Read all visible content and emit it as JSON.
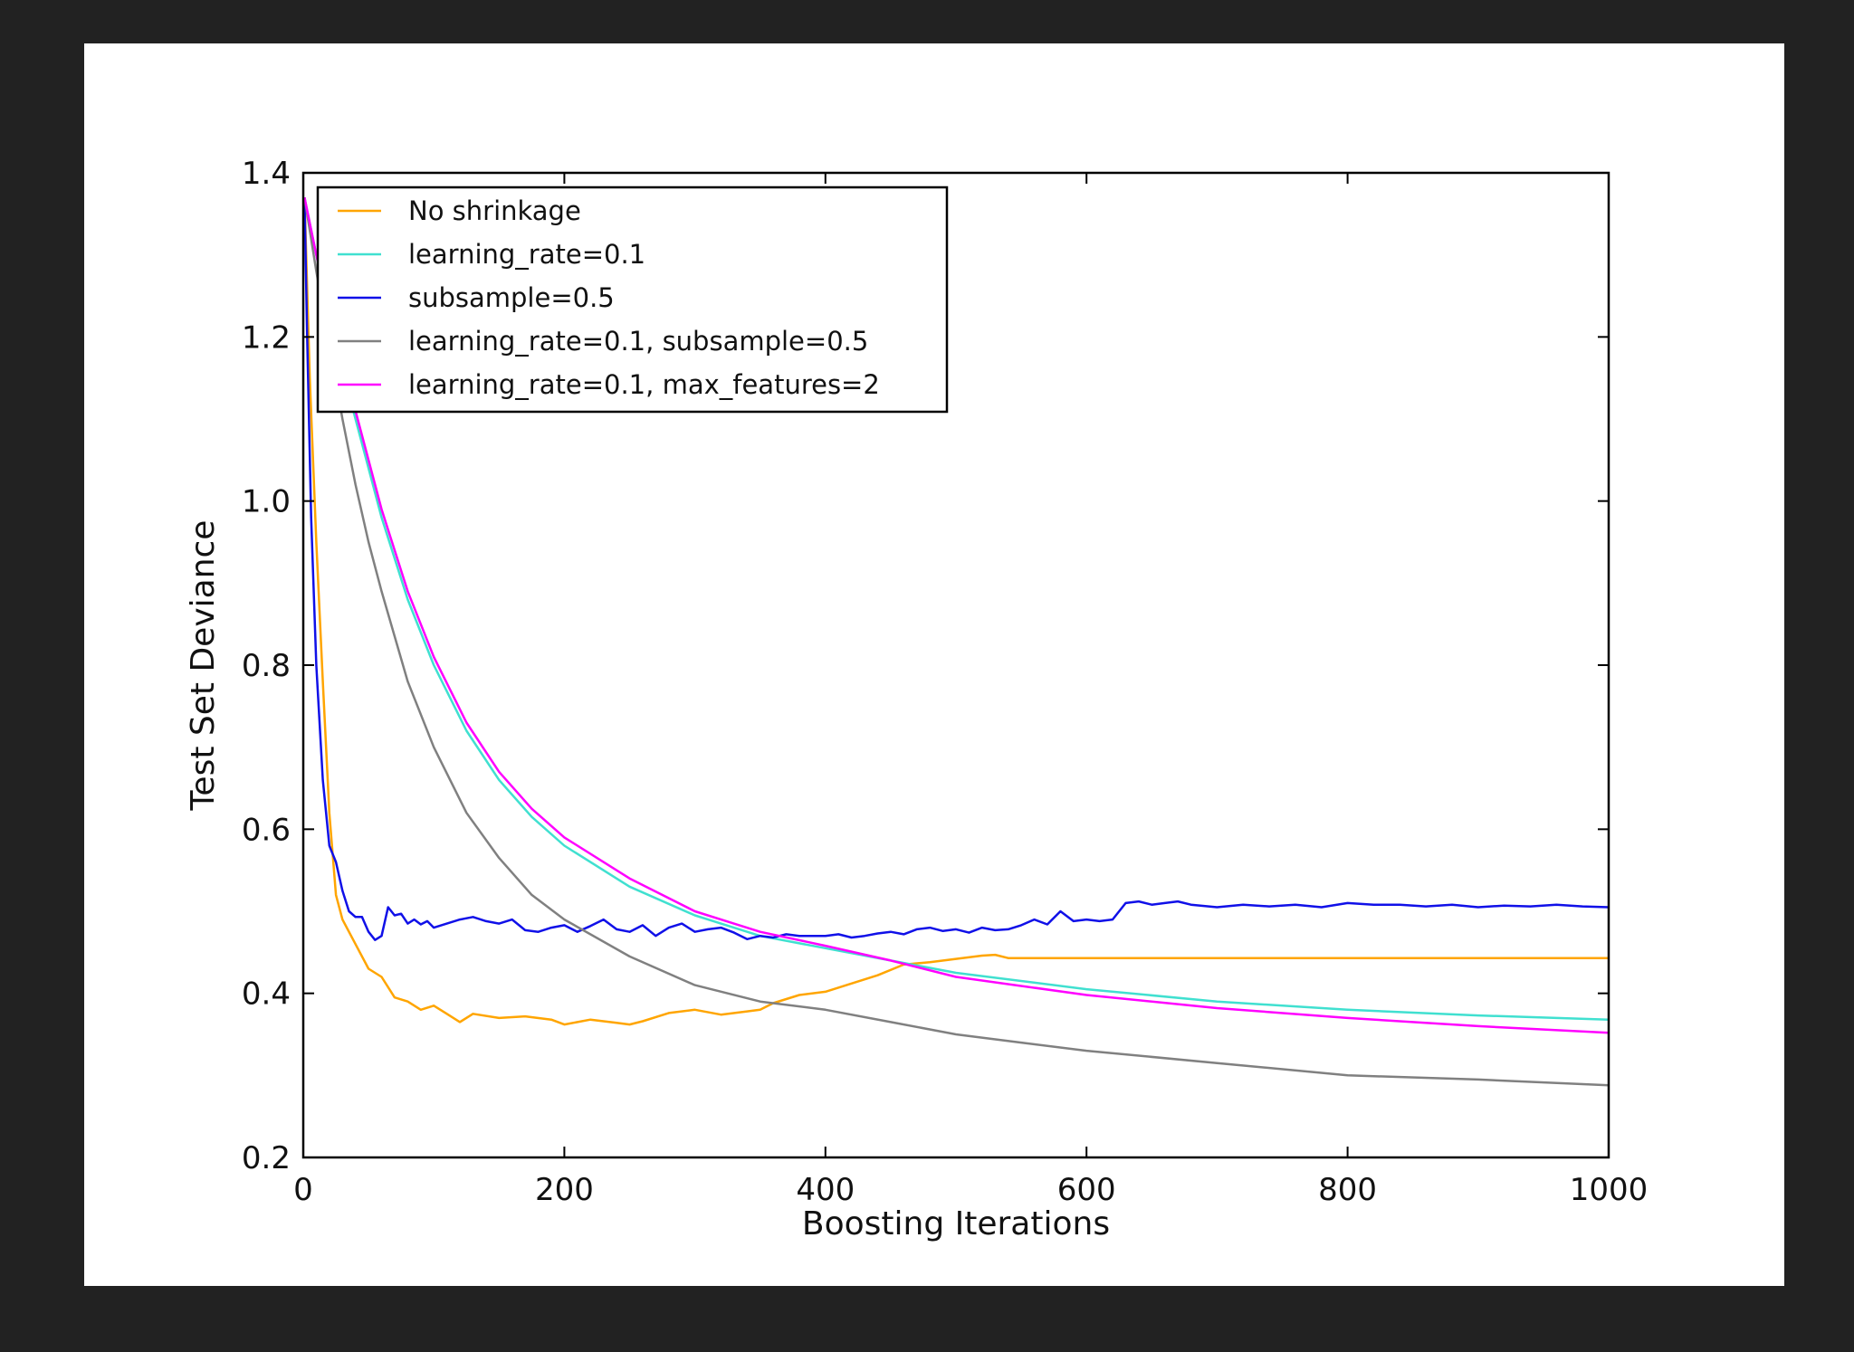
{
  "chart_data": {
    "type": "line",
    "title": "",
    "xlabel": "Boosting Iterations",
    "ylabel": "Test Set Deviance",
    "xlim": [
      0,
      1000
    ],
    "ylim": [
      0.2,
      1.4
    ],
    "xticks": [
      0,
      200,
      400,
      600,
      800,
      1000
    ],
    "xtick_labels": [
      "0",
      "200",
      "400",
      "600",
      "800",
      "1000"
    ],
    "yticks": [
      0.2,
      0.4,
      0.6,
      0.8,
      1.0,
      1.2,
      1.4
    ],
    "ytick_labels": [
      "0.2",
      "0.4",
      "0.6",
      "0.8",
      "1.0",
      "1.2",
      "1.4"
    ],
    "grid": false,
    "legend_position": "upper-left",
    "series": [
      {
        "name": "No shrinkage",
        "color": "#FFA500",
        "x": [
          1,
          5,
          10,
          15,
          20,
          25,
          30,
          40,
          50,
          60,
          70,
          80,
          90,
          100,
          110,
          120,
          130,
          150,
          170,
          190,
          200,
          220,
          240,
          250,
          260,
          280,
          300,
          320,
          340,
          350,
          360,
          380,
          400,
          420,
          440,
          460,
          480,
          500,
          520,
          530,
          540,
          560,
          600,
          700,
          800,
          900,
          1000
        ],
        "y": [
          1.37,
          1.15,
          0.95,
          0.78,
          0.62,
          0.52,
          0.49,
          0.46,
          0.43,
          0.42,
          0.395,
          0.39,
          0.38,
          0.385,
          0.375,
          0.365,
          0.375,
          0.37,
          0.372,
          0.368,
          0.362,
          0.368,
          0.364,
          0.362,
          0.366,
          0.376,
          0.38,
          0.374,
          0.378,
          0.38,
          0.388,
          0.398,
          0.402,
          0.412,
          0.422,
          0.435,
          0.438,
          0.442,
          0.446,
          0.447,
          0.443,
          0.443,
          0.443,
          0.443,
          0.443,
          0.443,
          0.443
        ]
      },
      {
        "name": "learning_rate=0.1",
        "color": "#40E0D0",
        "x": [
          1,
          10,
          20,
          30,
          40,
          50,
          60,
          80,
          100,
          125,
          150,
          175,
          200,
          250,
          300,
          350,
          400,
          450,
          500,
          600,
          700,
          800,
          900,
          1000
        ],
        "y": [
          1.37,
          1.3,
          1.23,
          1.16,
          1.1,
          1.04,
          0.98,
          0.88,
          0.8,
          0.72,
          0.66,
          0.615,
          0.58,
          0.53,
          0.495,
          0.47,
          0.455,
          0.44,
          0.425,
          0.405,
          0.39,
          0.38,
          0.373,
          0.368
        ]
      },
      {
        "name": "subsample=0.5",
        "color": "#1010E8",
        "x": [
          1,
          3,
          6,
          10,
          15,
          20,
          25,
          30,
          35,
          40,
          45,
          50,
          55,
          60,
          65,
          70,
          75,
          80,
          85,
          90,
          95,
          100,
          110,
          120,
          130,
          140,
          150,
          160,
          170,
          180,
          190,
          200,
          210,
          220,
          230,
          240,
          250,
          260,
          270,
          280,
          290,
          300,
          310,
          320,
          330,
          340,
          350,
          360,
          370,
          380,
          390,
          400,
          410,
          420,
          430,
          440,
          450,
          460,
          470,
          480,
          490,
          500,
          510,
          520,
          530,
          540,
          550,
          560,
          570,
          580,
          590,
          600,
          610,
          620,
          630,
          640,
          650,
          660,
          670,
          680,
          700,
          720,
          740,
          760,
          780,
          800,
          820,
          840,
          860,
          880,
          900,
          920,
          940,
          960,
          980,
          1000
        ],
        "y": [
          1.37,
          1.2,
          0.98,
          0.8,
          0.66,
          0.58,
          0.56,
          0.525,
          0.5,
          0.493,
          0.493,
          0.475,
          0.465,
          0.47,
          0.505,
          0.495,
          0.497,
          0.485,
          0.49,
          0.484,
          0.488,
          0.48,
          0.485,
          0.49,
          0.493,
          0.488,
          0.485,
          0.49,
          0.477,
          0.475,
          0.48,
          0.483,
          0.475,
          0.482,
          0.49,
          0.478,
          0.475,
          0.483,
          0.47,
          0.48,
          0.485,
          0.475,
          0.478,
          0.48,
          0.474,
          0.466,
          0.47,
          0.468,
          0.472,
          0.47,
          0.47,
          0.47,
          0.472,
          0.468,
          0.47,
          0.473,
          0.475,
          0.472,
          0.478,
          0.48,
          0.476,
          0.478,
          0.474,
          0.48,
          0.477,
          0.478,
          0.483,
          0.49,
          0.484,
          0.5,
          0.488,
          0.49,
          0.488,
          0.49,
          0.51,
          0.512,
          0.508,
          0.51,
          0.512,
          0.508,
          0.505,
          0.508,
          0.506,
          0.508,
          0.505,
          0.51,
          0.508,
          0.508,
          0.506,
          0.508,
          0.505,
          0.507,
          0.506,
          0.508,
          0.506,
          0.505
        ]
      },
      {
        "name": "learning_rate=0.1, subsample=0.5",
        "color": "#808080",
        "x": [
          1,
          10,
          20,
          30,
          40,
          50,
          60,
          80,
          100,
          125,
          150,
          175,
          200,
          250,
          300,
          350,
          400,
          450,
          500,
          550,
          600,
          700,
          800,
          900,
          1000
        ],
        "y": [
          1.37,
          1.28,
          1.19,
          1.1,
          1.02,
          0.95,
          0.89,
          0.78,
          0.7,
          0.62,
          0.565,
          0.52,
          0.49,
          0.445,
          0.41,
          0.39,
          0.38,
          0.365,
          0.35,
          0.34,
          0.33,
          0.315,
          0.3,
          0.295,
          0.288
        ]
      },
      {
        "name": "learning_rate=0.1, max_features=2",
        "color": "#FF00FF",
        "x": [
          1,
          10,
          20,
          30,
          40,
          50,
          60,
          80,
          100,
          125,
          150,
          175,
          200,
          250,
          300,
          350,
          400,
          450,
          500,
          600,
          700,
          800,
          900,
          1000
        ],
        "y": [
          1.37,
          1.3,
          1.23,
          1.17,
          1.11,
          1.05,
          0.99,
          0.89,
          0.81,
          0.73,
          0.67,
          0.625,
          0.59,
          0.54,
          0.5,
          0.475,
          0.458,
          0.44,
          0.42,
          0.398,
          0.382,
          0.37,
          0.36,
          0.352
        ]
      }
    ]
  }
}
